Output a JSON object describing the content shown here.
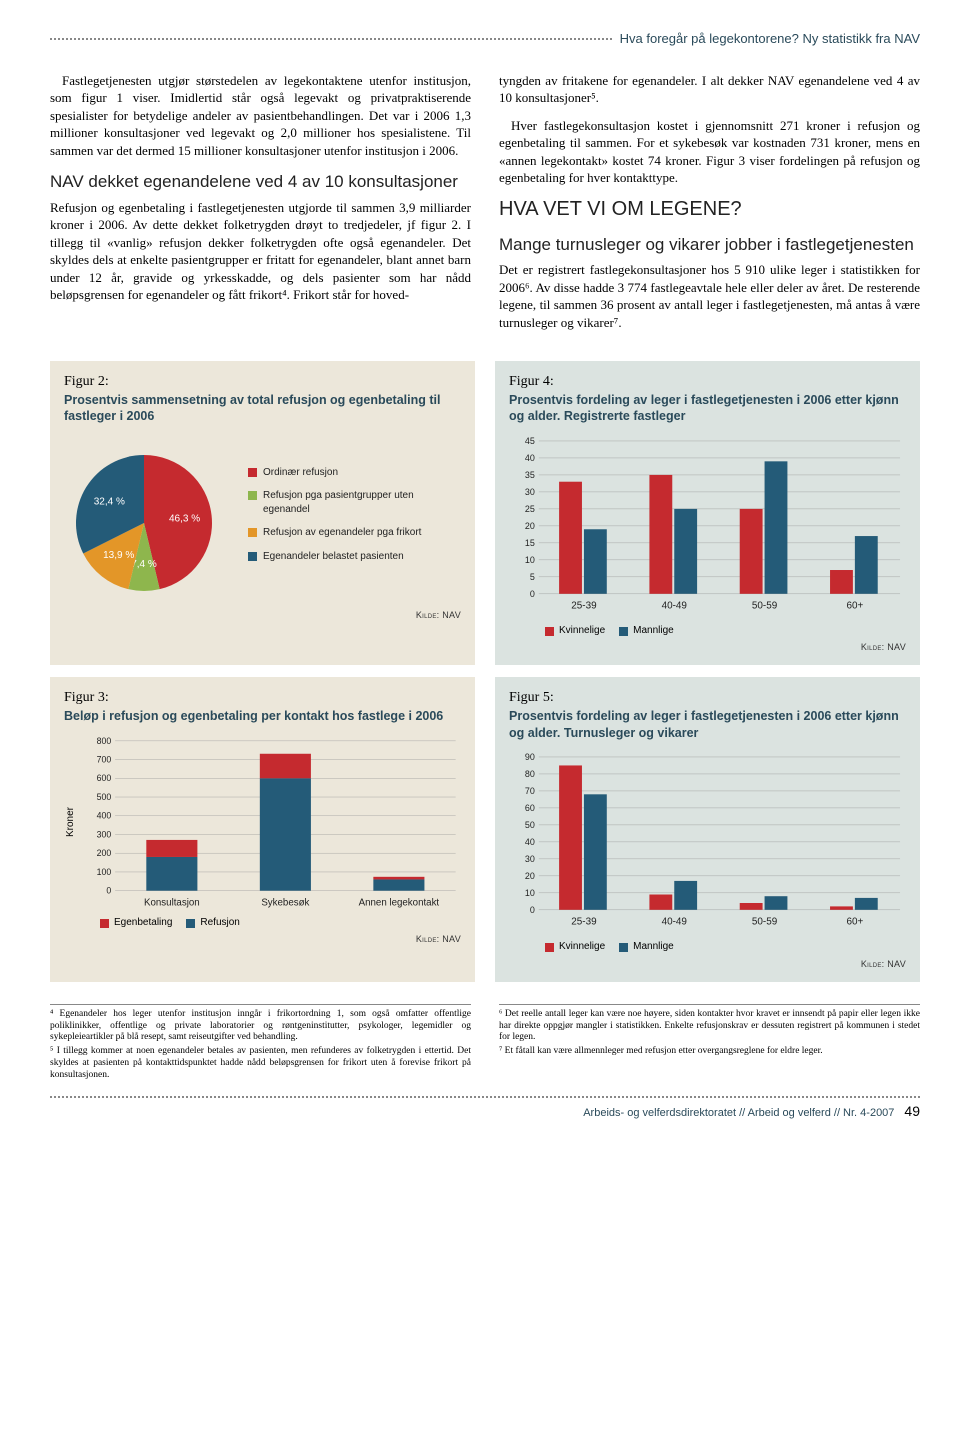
{
  "header": {
    "title": "Hva foregår på legekontorene? Ny statistikk fra NAV"
  },
  "body": {
    "left_p1": "Fastlegetjenesten utgjør størstedelen av legekontaktene utenfor institusjon, som figur 1 viser. Imidlertid står også legevakt og privatpraktiserende spesialister for betydelige andeler av pasientbehandlingen. Det var i 2006 1,3 millioner konsultasjoner ved legevakt og 2,0 millioner hos spesialistene. Til sammen var det dermed 15 millioner konsultasjoner utenfor institusjon i 2006.",
    "left_h1": "NAV dekket egenandelene ved 4 av 10 konsultasjoner",
    "left_p2": "Refusjon og egenbetaling i fastlegetjenesten utgjorde til sammen 3,9 milliarder kroner i 2006. Av dette dekket folketrygden drøyt to tredjedeler, jf figur 2. I tillegg til «vanlig» refusjon dekker folketrygden ofte også egenandeler. Det skyldes dels at enkelte pasientgrupper er fritatt for egenandeler, blant annet barn under 12 år, gravide og yrkesskadde, og dels pasienter som har nådd beløpsgrensen for egenandeler og fått frikort⁴. Frikort står for hoved-",
    "right_p1": "tyngden av fritakene for egenandeler. I alt dekker NAV egenandelene ved 4 av 10 konsultasjoner⁵.",
    "right_p2": "Hver fastlegekonsultasjon kostet i gjennomsnitt 271 kroner i refusjon og egenbetaling til sammen. For et sykebesøk var kostnaden 731 kroner, mens en «annen legekontakt» kostet 74 kroner. Figur 3 viser fordelingen på refusjon og egenbetaling for hver kontakttype.",
    "right_h1": "HVA VET VI OM LEGENE?",
    "right_h2": "Mange turnusleger og vikarer jobber i fastlegetjenesten",
    "right_p3": "Det er registrert fastlegekonsultasjoner hos 5 910 ulike leger i statistikken for 2006⁶. Av disse hadde 3 774 fastlegeavtale hele eller deler av året. De resterende legene, til sammen 36 prosent av antall leger i fastlegetjenesten, må antas å være turnusleger og vikarer⁷."
  },
  "fig2": {
    "label": "Figur 2:",
    "title": "Prosentvis sammensetning av total refusjon og egenbetaling til fastleger i 2006",
    "slices": [
      {
        "label": "Ordinær refusjon",
        "value": 46.3,
        "color": "#c52a2f",
        "display": "46,3 %"
      },
      {
        "label": "Refusjon pga pasientgrupper uten egenandel",
        "value": 7.4,
        "color": "#8eb64d",
        "display": "7,4 %"
      },
      {
        "label": "Refusjon av egenandeler pga frikort",
        "value": 13.9,
        "color": "#e39628",
        "display": "13,9 %"
      },
      {
        "label": "Egenandeler belastet pasienten",
        "value": 32.4,
        "color": "#245b78",
        "display": "32,4 %"
      }
    ],
    "source": "Kilde: NAV"
  },
  "fig3": {
    "label": "Figur 3:",
    "title": "Beløp i refusjon og egenbetaling per kontakt hos fastlege i 2006",
    "ylabel": "Kroner",
    "ymax": 800,
    "ytick": 100,
    "categories": [
      "Konsultasjon",
      "Sykebesøk",
      "Annen legekontakt"
    ],
    "series": [
      {
        "name": "Refusjon",
        "color": "#245b78",
        "values": [
          180,
          600,
          60
        ]
      },
      {
        "name": "Egenbetaling",
        "color": "#c52a2f",
        "values": [
          91,
          131,
          14
        ]
      }
    ],
    "legend": [
      "Egenbetaling",
      "Refusjon"
    ],
    "legend_colors": [
      "#c52a2f",
      "#245b78"
    ],
    "source": "Kilde: NAV"
  },
  "fig4": {
    "label": "Figur 4:",
    "title": "Prosentvis fordeling av leger i fastlegetjenesten i 2006 etter kjønn og alder. Registrerte fastleger",
    "ymax": 45,
    "ytick": 5,
    "categories": [
      "25-39",
      "40-49",
      "50-59",
      "60+"
    ],
    "series": [
      {
        "name": "Kvinnelige",
        "color": "#c52a2f",
        "values": [
          33,
          35,
          25,
          7
        ]
      },
      {
        "name": "Mannlige",
        "color": "#245b78",
        "values": [
          19,
          25,
          39,
          17
        ]
      }
    ],
    "source": "Kilde: NAV"
  },
  "fig5": {
    "label": "Figur 5:",
    "title": "Prosentvis fordeling av leger i fastlegetjenesten i 2006 etter kjønn og alder. Turnusleger og vikarer",
    "ymax": 90,
    "ytick": 10,
    "categories": [
      "25-39",
      "40-49",
      "50-59",
      "60+"
    ],
    "series": [
      {
        "name": "Kvinnelige",
        "color": "#c52a2f",
        "values": [
          85,
          9,
          4,
          2
        ]
      },
      {
        "name": "Mannlige",
        "color": "#245b78",
        "values": [
          68,
          17,
          8,
          7
        ]
      }
    ],
    "source": "Kilde: NAV"
  },
  "footnotes": {
    "left": [
      "⁴ Egenandeler hos leger utenfor institusjon inngår i frikortordning 1, som også omfatter offentlige poliklinikker, offentlige og private laboratorier og røntgeninstitutter, psykologer, legemidler og sykepleieartikler på blå resept, samt reiseutgifter ved behandling.",
      "⁵ I tillegg kommer at noen egenandeler betales av pasienten, men refunderes av folketrygden i ettertid. Det skyldes at pasienten på kontakttidspunktet hadde nådd beløpsgrensen for frikort uten å forevise frikort på konsultasjonen."
    ],
    "right": [
      "⁶ Det reelle antall leger kan være noe høyere, siden kontakter hvor kravet er innsendt på papir eller legen ikke har direkte oppgjør mangler i statistikken. Enkelte refusjonskrav er dessuten registrert på kommunen i stedet for legen.",
      "⁷ Et fåtall kan være allmennleger med refusjon etter overgangsreglene for eldre leger."
    ]
  },
  "footer": {
    "text": "Arbeids- og velferdsdirektoratet // Arbeid og velferd // Nr. 4-2007",
    "page": "49"
  }
}
